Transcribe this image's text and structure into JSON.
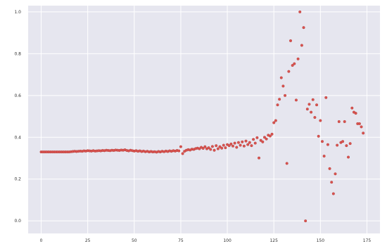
{
  "chart_data": {
    "type": "scatter",
    "title": "",
    "xlabel": "",
    "ylabel": "",
    "grid": true,
    "background": "#e6e6ef",
    "grid_color": "#ffffff",
    "marker_color": "#d9534f",
    "marker_edge": "#b03a37",
    "xlim": [
      -7,
      182
    ],
    "ylim": [
      -0.06,
      1.03
    ],
    "x_ticks": [
      0,
      25,
      50,
      75,
      100,
      125,
      150,
      175
    ],
    "y_ticks": [
      0.0,
      0.2,
      0.4,
      0.6,
      0.8,
      1.0
    ],
    "x_tick_labels": [
      "0",
      "25",
      "50",
      "75",
      "100",
      "125",
      "150",
      "175"
    ],
    "y_tick_labels": [
      "0.0",
      "0.2",
      "0.4",
      "0.6",
      "0.8",
      "1.0"
    ],
    "series": [
      {
        "points": [
          [
            0,
            0.33
          ],
          [
            1,
            0.33
          ],
          [
            2,
            0.33
          ],
          [
            3,
            0.33
          ],
          [
            4,
            0.33
          ],
          [
            5,
            0.33
          ],
          [
            6,
            0.33
          ],
          [
            7,
            0.33
          ],
          [
            8,
            0.33
          ],
          [
            9,
            0.33
          ],
          [
            10,
            0.33
          ],
          [
            11,
            0.33
          ],
          [
            12,
            0.33
          ],
          [
            13,
            0.33
          ],
          [
            14,
            0.33
          ],
          [
            15,
            0.33
          ],
          [
            16,
            0.331
          ],
          [
            17,
            0.332
          ],
          [
            18,
            0.333
          ],
          [
            19,
            0.332
          ],
          [
            20,
            0.333
          ],
          [
            21,
            0.334
          ],
          [
            22,
            0.333
          ],
          [
            23,
            0.335
          ],
          [
            24,
            0.334
          ],
          [
            25,
            0.336
          ],
          [
            26,
            0.335
          ],
          [
            27,
            0.334
          ],
          [
            28,
            0.336
          ],
          [
            29,
            0.334
          ],
          [
            30,
            0.335
          ],
          [
            31,
            0.336
          ],
          [
            32,
            0.335
          ],
          [
            33,
            0.337
          ],
          [
            34,
            0.336
          ],
          [
            35,
            0.338
          ],
          [
            36,
            0.337
          ],
          [
            37,
            0.336
          ],
          [
            38,
            0.338
          ],
          [
            39,
            0.337
          ],
          [
            40,
            0.339
          ],
          [
            41,
            0.338
          ],
          [
            42,
            0.337
          ],
          [
            43,
            0.339
          ],
          [
            44,
            0.338
          ],
          [
            45,
            0.34
          ],
          [
            46,
            0.337
          ],
          [
            47,
            0.335
          ],
          [
            48,
            0.338
          ],
          [
            49,
            0.336
          ],
          [
            50,
            0.334
          ],
          [
            51,
            0.336
          ],
          [
            52,
            0.333
          ],
          [
            53,
            0.335
          ],
          [
            54,
            0.332
          ],
          [
            55,
            0.334
          ],
          [
            56,
            0.331
          ],
          [
            57,
            0.333
          ],
          [
            58,
            0.33
          ],
          [
            59,
            0.332
          ],
          [
            60,
            0.33
          ],
          [
            61,
            0.331
          ],
          [
            62,
            0.329
          ],
          [
            63,
            0.332
          ],
          [
            64,
            0.33
          ],
          [
            65,
            0.333
          ],
          [
            66,
            0.331
          ],
          [
            67,
            0.334
          ],
          [
            68,
            0.332
          ],
          [
            69,
            0.335
          ],
          [
            70,
            0.333
          ],
          [
            71,
            0.336
          ],
          [
            72,
            0.334
          ],
          [
            73,
            0.337
          ],
          [
            74,
            0.335
          ],
          [
            75,
            0.355
          ],
          [
            76,
            0.322
          ],
          [
            77,
            0.333
          ],
          [
            78,
            0.338
          ],
          [
            79,
            0.341
          ],
          [
            80,
            0.339
          ],
          [
            81,
            0.343
          ],
          [
            82,
            0.342
          ],
          [
            83,
            0.346
          ],
          [
            84,
            0.348
          ],
          [
            85,
            0.345
          ],
          [
            86,
            0.352
          ],
          [
            87,
            0.347
          ],
          [
            88,
            0.355
          ],
          [
            89,
            0.345
          ],
          [
            90,
            0.35
          ],
          [
            91,
            0.342
          ],
          [
            92,
            0.356
          ],
          [
            93,
            0.338
          ],
          [
            94,
            0.36
          ],
          [
            95,
            0.345
          ],
          [
            96,
            0.355
          ],
          [
            97,
            0.348
          ],
          [
            98,
            0.362
          ],
          [
            99,
            0.35
          ],
          [
            100,
            0.365
          ],
          [
            101,
            0.36
          ],
          [
            102,
            0.368
          ],
          [
            103,
            0.358
          ],
          [
            104,
            0.372
          ],
          [
            105,
            0.352
          ],
          [
            106,
            0.375
          ],
          [
            107,
            0.362
          ],
          [
            108,
            0.378
          ],
          [
            109,
            0.358
          ],
          [
            110,
            0.382
          ],
          [
            111,
            0.365
          ],
          [
            112,
            0.375
          ],
          [
            113,
            0.36
          ],
          [
            114,
            0.39
          ],
          [
            115,
            0.372
          ],
          [
            116,
            0.398
          ],
          [
            117,
            0.301
          ],
          [
            118,
            0.385
          ],
          [
            119,
            0.378
          ],
          [
            120,
            0.4
          ],
          [
            121,
            0.392
          ],
          [
            122,
            0.41
          ],
          [
            123,
            0.406
          ],
          [
            124,
            0.415
          ],
          [
            125,
            0.47
          ],
          [
            126,
            0.48
          ],
          [
            127,
            0.555
          ],
          [
            128,
            0.582
          ],
          [
            129,
            0.685
          ],
          [
            130,
            0.645
          ],
          [
            131,
            0.6
          ],
          [
            132,
            0.275
          ],
          [
            133,
            0.715
          ],
          [
            134,
            0.862
          ],
          [
            135,
            0.744
          ],
          [
            136,
            0.752
          ],
          [
            137,
            0.578
          ],
          [
            138,
            0.775
          ],
          [
            139,
            1.0
          ],
          [
            140,
            0.84
          ],
          [
            141,
            0.925
          ],
          [
            142,
            0.0
          ],
          [
            143,
            0.535
          ],
          [
            144,
            0.558
          ],
          [
            145,
            0.52
          ],
          [
            146,
            0.58
          ],
          [
            147,
            0.495
          ],
          [
            148,
            0.555
          ],
          [
            149,
            0.405
          ],
          [
            150,
            0.48
          ],
          [
            151,
            0.38
          ],
          [
            152,
            0.31
          ],
          [
            153,
            0.59
          ],
          [
            154,
            0.365
          ],
          [
            155,
            0.25
          ],
          [
            156,
            0.185
          ],
          [
            157,
            0.13
          ],
          [
            158,
            0.225
          ],
          [
            159,
            0.362
          ],
          [
            160,
            0.475
          ],
          [
            161,
            0.375
          ],
          [
            162,
            0.38
          ],
          [
            163,
            0.475
          ],
          [
            164,
            0.36
          ],
          [
            165,
            0.305
          ],
          [
            166,
            0.37
          ],
          [
            167,
            0.54
          ],
          [
            168,
            0.52
          ],
          [
            169,
            0.515
          ],
          [
            170,
            0.465
          ],
          [
            171,
            0.465
          ],
          [
            172,
            0.45
          ],
          [
            173,
            0.42
          ]
        ]
      }
    ]
  }
}
